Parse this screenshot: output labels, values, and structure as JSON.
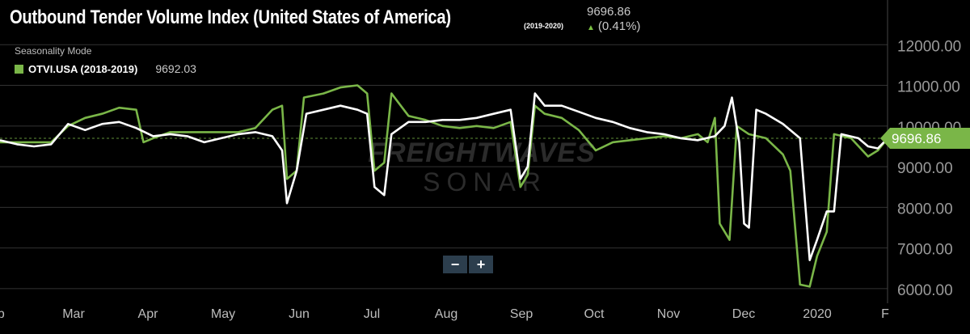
{
  "header": {
    "title": "Outbound Tender Volume Index (United States of America)",
    "title_range": "(2019-2020)",
    "current_value": "9696.86",
    "change": "(0.41%)",
    "mode_label": "Seasonality Mode",
    "legend_name": "OTVI.USA (2018-2019)",
    "legend_value": "9692.03"
  },
  "watermark": {
    "brand": "FREIGHTWAVES",
    "product": "SONAR"
  },
  "zoom": {
    "minus": "−",
    "plus": "+"
  },
  "colors": {
    "current": "#ffffff",
    "prior": "#7ab648",
    "background": "#000000",
    "grid": "#333333",
    "marker": "#7ab648"
  },
  "chart_data": {
    "type": "line",
    "title": "Outbound Tender Volume Index (United States of America)",
    "x_tick_labels": [
      "Feb",
      "Mar",
      "Apr",
      "May",
      "Jun",
      "Jul",
      "Aug",
      "Sep",
      "Oct",
      "Nov",
      "Dec",
      "2020",
      "F"
    ],
    "y_ticks": [
      6000,
      7000,
      8000,
      9000,
      10000,
      11000,
      12000
    ],
    "y_tick_labels": [
      "6000.00",
      "7000.00",
      "8000.00",
      "9000.00",
      "10000.00",
      "11000.00",
      "12000.00"
    ],
    "ylim": [
      5700,
      13000
    ],
    "xlim": [
      "2019-02-01",
      "2020-02-01"
    ],
    "current_value_marker": {
      "value": 9696.86,
      "label": "9696.86"
    },
    "grid": true,
    "series": [
      {
        "name": "OTVI.USA (2019-2020)",
        "color": "#ffffff",
        "points": [
          [
            "2019-02-01",
            9650
          ],
          [
            "2019-02-08",
            9550
          ],
          [
            "2019-02-15",
            9500
          ],
          [
            "2019-02-22",
            9550
          ],
          [
            "2019-03-01",
            10050
          ],
          [
            "2019-03-08",
            9900
          ],
          [
            "2019-03-15",
            10050
          ],
          [
            "2019-03-22",
            10100
          ],
          [
            "2019-03-29",
            9950
          ],
          [
            "2019-04-05",
            9750
          ],
          [
            "2019-04-12",
            9800
          ],
          [
            "2019-04-19",
            9750
          ],
          [
            "2019-04-26",
            9600
          ],
          [
            "2019-05-03",
            9700
          ],
          [
            "2019-05-10",
            9800
          ],
          [
            "2019-05-17",
            9850
          ],
          [
            "2019-05-24",
            9750
          ],
          [
            "2019-05-28",
            9400
          ],
          [
            "2019-05-30",
            8100
          ],
          [
            "2019-06-03",
            8900
          ],
          [
            "2019-06-07",
            10300
          ],
          [
            "2019-06-14",
            10400
          ],
          [
            "2019-06-21",
            10500
          ],
          [
            "2019-06-28",
            10400
          ],
          [
            "2019-07-02",
            10300
          ],
          [
            "2019-07-05",
            8500
          ],
          [
            "2019-07-09",
            8300
          ],
          [
            "2019-07-12",
            9800
          ],
          [
            "2019-07-19",
            10100
          ],
          [
            "2019-07-26",
            10100
          ],
          [
            "2019-08-02",
            10150
          ],
          [
            "2019-08-09",
            10150
          ],
          [
            "2019-08-16",
            10200
          ],
          [
            "2019-08-23",
            10300
          ],
          [
            "2019-08-30",
            10400
          ],
          [
            "2019-09-03",
            8700
          ],
          [
            "2019-09-06",
            9000
          ],
          [
            "2019-09-09",
            10800
          ],
          [
            "2019-09-13",
            10500
          ],
          [
            "2019-09-20",
            10500
          ],
          [
            "2019-09-27",
            10350
          ],
          [
            "2019-10-04",
            10200
          ],
          [
            "2019-10-11",
            10100
          ],
          [
            "2019-10-18",
            9950
          ],
          [
            "2019-10-25",
            9850
          ],
          [
            "2019-11-01",
            9800
          ],
          [
            "2019-11-08",
            9700
          ],
          [
            "2019-11-15",
            9650
          ],
          [
            "2019-11-22",
            9750
          ],
          [
            "2019-11-26",
            10000
          ],
          [
            "2019-11-29",
            10700
          ],
          [
            "2019-12-02",
            9600
          ],
          [
            "2019-12-04",
            7600
          ],
          [
            "2019-12-06",
            7500
          ],
          [
            "2019-12-09",
            10400
          ],
          [
            "2019-12-13",
            10300
          ],
          [
            "2019-12-20",
            10050
          ],
          [
            "2019-12-27",
            9700
          ],
          [
            "2019-12-31",
            6700
          ],
          [
            "2020-01-03",
            7200
          ],
          [
            "2020-01-07",
            7900
          ],
          [
            "2020-01-10",
            7900
          ],
          [
            "2020-01-13",
            9800
          ],
          [
            "2020-01-20",
            9700
          ],
          [
            "2020-01-24",
            9500
          ],
          [
            "2020-01-28",
            9450
          ],
          [
            "2020-02-01",
            9697
          ]
        ]
      },
      {
        "name": "OTVI.USA (2018-2019)",
        "color": "#7ab648",
        "points": [
          [
            "2019-02-01",
            9600
          ],
          [
            "2019-02-08",
            9600
          ],
          [
            "2019-02-15",
            9600
          ],
          [
            "2019-02-22",
            9600
          ],
          [
            "2019-03-01",
            10000
          ],
          [
            "2019-03-08",
            10200
          ],
          [
            "2019-03-15",
            10300
          ],
          [
            "2019-03-22",
            10450
          ],
          [
            "2019-03-29",
            10400
          ],
          [
            "2019-04-01",
            9600
          ],
          [
            "2019-04-05",
            9700
          ],
          [
            "2019-04-12",
            9850
          ],
          [
            "2019-04-19",
            9850
          ],
          [
            "2019-04-26",
            9850
          ],
          [
            "2019-05-03",
            9850
          ],
          [
            "2019-05-10",
            9850
          ],
          [
            "2019-05-17",
            9950
          ],
          [
            "2019-05-24",
            10400
          ],
          [
            "2019-05-28",
            10500
          ],
          [
            "2019-05-30",
            8700
          ],
          [
            "2019-06-03",
            8900
          ],
          [
            "2019-06-06",
            10700
          ],
          [
            "2019-06-14",
            10800
          ],
          [
            "2019-06-21",
            10950
          ],
          [
            "2019-06-28",
            11000
          ],
          [
            "2019-07-02",
            10800
          ],
          [
            "2019-07-05",
            8900
          ],
          [
            "2019-07-09",
            9100
          ],
          [
            "2019-07-12",
            10800
          ],
          [
            "2019-07-19",
            10250
          ],
          [
            "2019-07-26",
            10150
          ],
          [
            "2019-08-02",
            10000
          ],
          [
            "2019-08-09",
            9950
          ],
          [
            "2019-08-16",
            10000
          ],
          [
            "2019-08-23",
            9950
          ],
          [
            "2019-08-30",
            10100
          ],
          [
            "2019-09-03",
            8500
          ],
          [
            "2019-09-06",
            8800
          ],
          [
            "2019-09-09",
            10500
          ],
          [
            "2019-09-13",
            10300
          ],
          [
            "2019-09-20",
            10200
          ],
          [
            "2019-09-27",
            9900
          ],
          [
            "2019-10-04",
            9400
          ],
          [
            "2019-10-11",
            9600
          ],
          [
            "2019-10-18",
            9650
          ],
          [
            "2019-10-25",
            9700
          ],
          [
            "2019-11-01",
            9750
          ],
          [
            "2019-11-08",
            9700
          ],
          [
            "2019-11-15",
            9800
          ],
          [
            "2019-11-19",
            9600
          ],
          [
            "2019-11-22",
            10200
          ],
          [
            "2019-11-24",
            7600
          ],
          [
            "2019-11-28",
            7200
          ],
          [
            "2019-12-01",
            10000
          ],
          [
            "2019-12-06",
            9800
          ],
          [
            "2019-12-13",
            9700
          ],
          [
            "2019-12-20",
            9300
          ],
          [
            "2019-12-23",
            8900
          ],
          [
            "2019-12-27",
            6100
          ],
          [
            "2019-12-31",
            6050
          ],
          [
            "2020-01-03",
            6800
          ],
          [
            "2020-01-07",
            7400
          ],
          [
            "2020-01-10",
            9800
          ],
          [
            "2020-01-17",
            9700
          ],
          [
            "2020-01-24",
            9250
          ],
          [
            "2020-01-28",
            9400
          ],
          [
            "2020-02-01",
            9692
          ]
        ]
      }
    ]
  }
}
